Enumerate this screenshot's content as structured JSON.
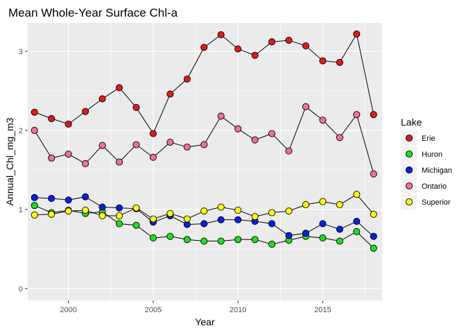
{
  "chart_data": {
    "type": "line",
    "title": "Mean Whole-Year Surface Chl-a",
    "xlabel": "Year",
    "ylabel": "Annual_Chl_mg_m3",
    "xlim": [
      1997.6,
      2018.5
    ],
    "ylim": [
      -0.15,
      3.36
    ],
    "x_ticks": [
      2000,
      2005,
      2010,
      2015
    ],
    "x_tick_labels": [
      "2000",
      "2005",
      "2010",
      "2015"
    ],
    "y_ticks": [
      0,
      1,
      2,
      3
    ],
    "y_tick_labels": [
      "0",
      "1",
      "2",
      "3"
    ],
    "grid": true,
    "legend": {
      "title": "Lake",
      "position": "right"
    },
    "x": [
      1998,
      1999,
      2000,
      2001,
      2002,
      2003,
      2004,
      2005,
      2006,
      2007,
      2008,
      2009,
      2010,
      2011,
      2012,
      2013,
      2014,
      2015,
      2016,
      2017,
      2018
    ],
    "series": [
      {
        "name": "Erie",
        "color": "#e31a1c",
        "values": [
          2.23,
          2.15,
          2.08,
          2.24,
          2.4,
          2.54,
          2.29,
          1.96,
          2.46,
          2.65,
          3.05,
          3.21,
          3.03,
          2.95,
          3.12,
          3.14,
          3.07,
          2.88,
          2.86,
          3.22,
          2.2
        ]
      },
      {
        "name": "Huron",
        "color": "#1ee01e",
        "values": [
          1.05,
          0.96,
          0.99,
          0.95,
          0.97,
          0.82,
          0.8,
          0.64,
          0.66,
          0.62,
          0.6,
          0.6,
          0.62,
          0.62,
          0.56,
          0.61,
          0.66,
          0.64,
          0.6,
          0.72,
          0.51
        ]
      },
      {
        "name": "Michigan",
        "color": "#0a1ee6",
        "values": [
          1.15,
          1.14,
          1.12,
          1.16,
          1.03,
          1.02,
          1.01,
          0.84,
          0.92,
          0.81,
          0.82,
          0.87,
          0.87,
          0.85,
          0.82,
          0.67,
          0.7,
          0.82,
          0.75,
          0.85,
          0.66
        ]
      },
      {
        "name": "Ontario",
        "color": "#f06ea8",
        "values": [
          2.0,
          1.65,
          1.7,
          1.58,
          1.81,
          1.6,
          1.82,
          1.66,
          1.85,
          1.79,
          1.82,
          2.18,
          2.02,
          1.88,
          1.96,
          1.74,
          2.3,
          2.13,
          1.91,
          2.2,
          1.45
        ]
      },
      {
        "name": "Superior",
        "color": "#ffff14",
        "values": [
          0.93,
          0.94,
          0.98,
          0.99,
          0.92,
          0.92,
          1.02,
          0.88,
          0.95,
          0.88,
          0.98,
          1.03,
          0.99,
          0.91,
          0.96,
          0.98,
          1.06,
          1.1,
          1.06,
          1.19,
          0.94
        ]
      }
    ]
  }
}
